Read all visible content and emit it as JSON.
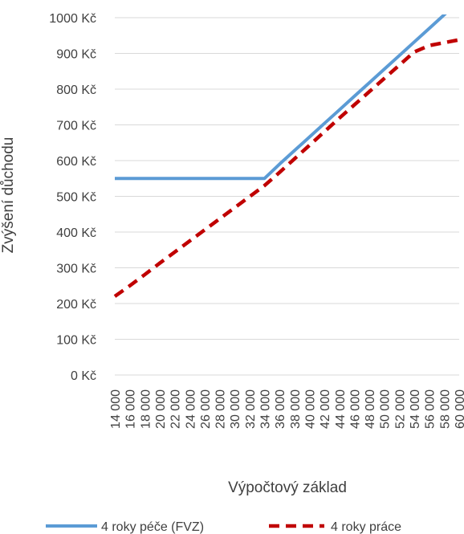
{
  "chart_data": {
    "type": "line",
    "title": "",
    "xlabel": "Výpočtový základ",
    "ylabel": "Zvýšení důchodu",
    "x": [
      14000,
      16000,
      18000,
      20000,
      22000,
      24000,
      26000,
      28000,
      30000,
      32000,
      34000,
      36000,
      38000,
      40000,
      42000,
      44000,
      46000,
      48000,
      50000,
      52000,
      54000,
      56000,
      58000,
      60000
    ],
    "x_tick_labels": [
      "14 000",
      "16 000",
      "18 000",
      "20 000",
      "22 000",
      "24 000",
      "26 000",
      "28 000",
      "30 000",
      "32 000",
      "34 000",
      "36 000",
      "38 000",
      "40 000",
      "42 000",
      "44 000",
      "46 000",
      "48 000",
      "50 000",
      "52 000",
      "54 000",
      "56 000",
      "58 000",
      "60 000"
    ],
    "y_ticks": [
      0,
      100,
      200,
      300,
      400,
      500,
      600,
      700,
      800,
      900,
      1000
    ],
    "y_tick_labels": [
      "0 Kč",
      "100 Kč",
      "200 Kč",
      "300 Kč",
      "400 Kč",
      "500 Kč",
      "600 Kč",
      "700 Kč",
      "800 Kč",
      "900 Kč",
      "1000 Kč"
    ],
    "ylim": [
      0,
      1000
    ],
    "grid": "horizontal",
    "legend_position": "bottom",
    "series": [
      {
        "name": "4 roky péče (FVZ)",
        "color": "#5B9BD5",
        "style": "solid",
        "values": [
          550,
          550,
          550,
          550,
          550,
          550,
          550,
          550,
          550,
          550,
          550,
          590,
          628,
          666,
          704,
          742,
          780,
          818,
          856,
          894,
          932,
          970,
          1008,
          1046
        ]
      },
      {
        "name": "4 roky práce",
        "color": "#C00000",
        "style": "dashed",
        "values": [
          220,
          250,
          281,
          313,
          344,
          375,
          406,
          437,
          468,
          499,
          530,
          567,
          605,
          643,
          681,
          719,
          756,
          793,
          830,
          867,
          904,
          922,
          930,
          938
        ]
      }
    ]
  }
}
